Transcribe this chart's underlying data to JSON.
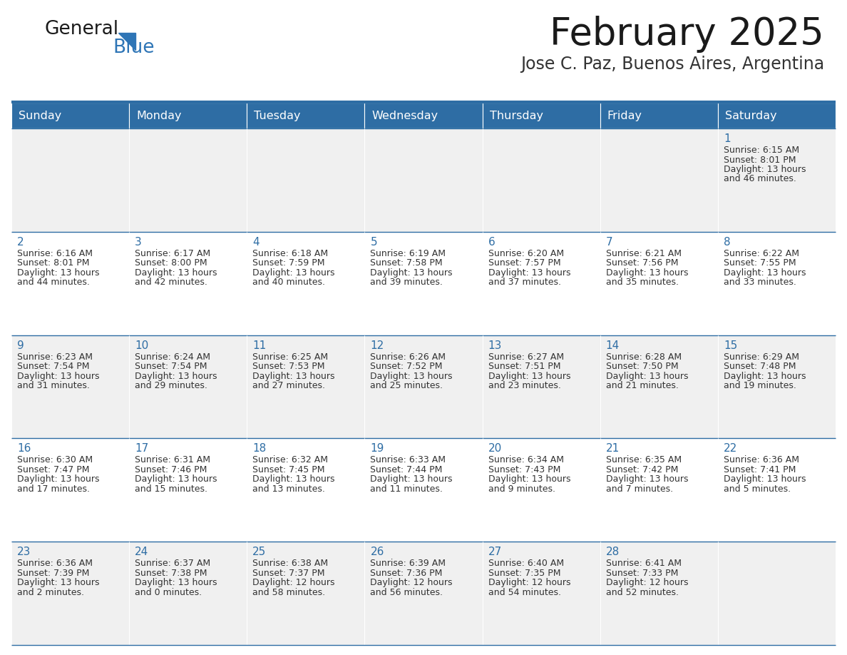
{
  "title": "February 2025",
  "subtitle": "Jose C. Paz, Buenos Aires, Argentina",
  "header_bg": "#2E6DA4",
  "header_text_color": "#FFFFFF",
  "cell_bg_odd": "#F0F0F0",
  "cell_bg_even": "#FFFFFF",
  "day_names": [
    "Sunday",
    "Monday",
    "Tuesday",
    "Wednesday",
    "Thursday",
    "Friday",
    "Saturday"
  ],
  "title_color": "#1a1a1a",
  "subtitle_color": "#333333",
  "day_num_color": "#2E6DA4",
  "info_color": "#333333",
  "line_color": "#2E6DA4",
  "logo_general_color": "#1a1a1a",
  "logo_blue_color": "#2E75B6",
  "weeks": [
    [
      null,
      null,
      null,
      null,
      null,
      null,
      {
        "day": 1,
        "sunrise": "6:15 AM",
        "sunset": "8:01 PM",
        "daylight_h": "13 hours",
        "daylight_m": "and 46 minutes."
      }
    ],
    [
      {
        "day": 2,
        "sunrise": "6:16 AM",
        "sunset": "8:01 PM",
        "daylight_h": "13 hours",
        "daylight_m": "and 44 minutes."
      },
      {
        "day": 3,
        "sunrise": "6:17 AM",
        "sunset": "8:00 PM",
        "daylight_h": "13 hours",
        "daylight_m": "and 42 minutes."
      },
      {
        "day": 4,
        "sunrise": "6:18 AM",
        "sunset": "7:59 PM",
        "daylight_h": "13 hours",
        "daylight_m": "and 40 minutes."
      },
      {
        "day": 5,
        "sunrise": "6:19 AM",
        "sunset": "7:58 PM",
        "daylight_h": "13 hours",
        "daylight_m": "and 39 minutes."
      },
      {
        "day": 6,
        "sunrise": "6:20 AM",
        "sunset": "7:57 PM",
        "daylight_h": "13 hours",
        "daylight_m": "and 37 minutes."
      },
      {
        "day": 7,
        "sunrise": "6:21 AM",
        "sunset": "7:56 PM",
        "daylight_h": "13 hours",
        "daylight_m": "and 35 minutes."
      },
      {
        "day": 8,
        "sunrise": "6:22 AM",
        "sunset": "7:55 PM",
        "daylight_h": "13 hours",
        "daylight_m": "and 33 minutes."
      }
    ],
    [
      {
        "day": 9,
        "sunrise": "6:23 AM",
        "sunset": "7:54 PM",
        "daylight_h": "13 hours",
        "daylight_m": "and 31 minutes."
      },
      {
        "day": 10,
        "sunrise": "6:24 AM",
        "sunset": "7:54 PM",
        "daylight_h": "13 hours",
        "daylight_m": "and 29 minutes."
      },
      {
        "day": 11,
        "sunrise": "6:25 AM",
        "sunset": "7:53 PM",
        "daylight_h": "13 hours",
        "daylight_m": "and 27 minutes."
      },
      {
        "day": 12,
        "sunrise": "6:26 AM",
        "sunset": "7:52 PM",
        "daylight_h": "13 hours",
        "daylight_m": "and 25 minutes."
      },
      {
        "day": 13,
        "sunrise": "6:27 AM",
        "sunset": "7:51 PM",
        "daylight_h": "13 hours",
        "daylight_m": "and 23 minutes."
      },
      {
        "day": 14,
        "sunrise": "6:28 AM",
        "sunset": "7:50 PM",
        "daylight_h": "13 hours",
        "daylight_m": "and 21 minutes."
      },
      {
        "day": 15,
        "sunrise": "6:29 AM",
        "sunset": "7:48 PM",
        "daylight_h": "13 hours",
        "daylight_m": "and 19 minutes."
      }
    ],
    [
      {
        "day": 16,
        "sunrise": "6:30 AM",
        "sunset": "7:47 PM",
        "daylight_h": "13 hours",
        "daylight_m": "and 17 minutes."
      },
      {
        "day": 17,
        "sunrise": "6:31 AM",
        "sunset": "7:46 PM",
        "daylight_h": "13 hours",
        "daylight_m": "and 15 minutes."
      },
      {
        "day": 18,
        "sunrise": "6:32 AM",
        "sunset": "7:45 PM",
        "daylight_h": "13 hours",
        "daylight_m": "and 13 minutes."
      },
      {
        "day": 19,
        "sunrise": "6:33 AM",
        "sunset": "7:44 PM",
        "daylight_h": "13 hours",
        "daylight_m": "and 11 minutes."
      },
      {
        "day": 20,
        "sunrise": "6:34 AM",
        "sunset": "7:43 PM",
        "daylight_h": "13 hours",
        "daylight_m": "and 9 minutes."
      },
      {
        "day": 21,
        "sunrise": "6:35 AM",
        "sunset": "7:42 PM",
        "daylight_h": "13 hours",
        "daylight_m": "and 7 minutes."
      },
      {
        "day": 22,
        "sunrise": "6:36 AM",
        "sunset": "7:41 PM",
        "daylight_h": "13 hours",
        "daylight_m": "and 5 minutes."
      }
    ],
    [
      {
        "day": 23,
        "sunrise": "6:36 AM",
        "sunset": "7:39 PM",
        "daylight_h": "13 hours",
        "daylight_m": "and 2 minutes."
      },
      {
        "day": 24,
        "sunrise": "6:37 AM",
        "sunset": "7:38 PM",
        "daylight_h": "13 hours",
        "daylight_m": "and 0 minutes."
      },
      {
        "day": 25,
        "sunrise": "6:38 AM",
        "sunset": "7:37 PM",
        "daylight_h": "12 hours",
        "daylight_m": "and 58 minutes."
      },
      {
        "day": 26,
        "sunrise": "6:39 AM",
        "sunset": "7:36 PM",
        "daylight_h": "12 hours",
        "daylight_m": "and 56 minutes."
      },
      {
        "day": 27,
        "sunrise": "6:40 AM",
        "sunset": "7:35 PM",
        "daylight_h": "12 hours",
        "daylight_m": "and 54 minutes."
      },
      {
        "day": 28,
        "sunrise": "6:41 AM",
        "sunset": "7:33 PM",
        "daylight_h": "12 hours",
        "daylight_m": "and 52 minutes."
      },
      null
    ]
  ],
  "fig_width": 11.88,
  "fig_height": 9.18,
  "dpi": 100
}
